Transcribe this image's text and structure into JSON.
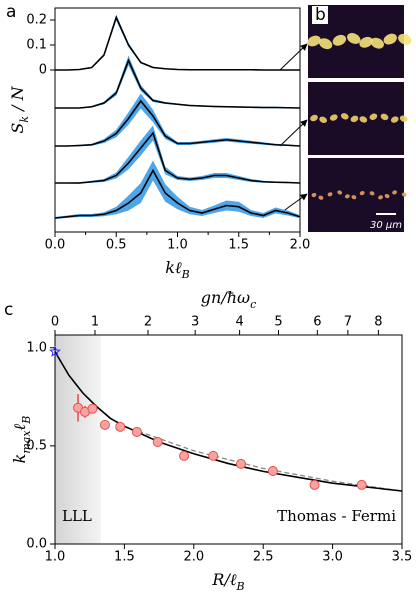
{
  "panel_labels": [
    "a",
    "b",
    "c"
  ],
  "image_panel": {
    "scale_bar": "30 μm"
  },
  "chart_data": [
    {
      "type": "line",
      "x": [
        0,
        0.1,
        0.2,
        0.3,
        0.4,
        0.5,
        0.6,
        0.7,
        0.8,
        0.9,
        1.0,
        1.1,
        1.2,
        1.3,
        1.4,
        1.5,
        1.6,
        1.7,
        1.8,
        1.9,
        2.0
      ],
      "xlim": [
        0,
        2
      ],
      "xticks": [
        {
          "value": 0,
          "label": "0.0"
        },
        0.5,
        {
          "value": 1,
          "label": "1.0"
        },
        1.5,
        {
          "value": 2,
          "label": "2.0"
        }
      ],
      "xminorticks": [
        0.25,
        0.75,
        1.25,
        1.75
      ],
      "ylim": [
        -0.648,
        0.248
      ],
      "yticks": [
        0,
        0.1,
        0.2
      ],
      "xlabel": [
        {
          "text": "kℓ"
        },
        {
          "text": "B",
          "sub": true
        }
      ],
      "ylabel": [
        {
          "text": "S"
        },
        {
          "text": "k",
          "sub": true
        },
        {
          "text": " / N"
        }
      ],
      "line_color": "#000000",
      "band_color": "#4da6ea",
      "series": [
        {
          "values": [
            0,
            0,
            0.002,
            0.01,
            0.06,
            0.21,
            0.1,
            0.03,
            0.01,
            0.005,
            0.002,
            0.001,
            0.001,
            0.001,
            0.001,
            0.001,
            0.001,
            0,
            0,
            0,
            0
          ],
          "errors": [
            0.002,
            0.002,
            0.002,
            0.003,
            0.006,
            0.012,
            0.008,
            0.004,
            0.003,
            0.002,
            0.002,
            0.002,
            0.002,
            0.002,
            0.002,
            0.002,
            0.002,
            0.002,
            0.002,
            0.002,
            0.002
          ]
        },
        {
          "values": [
            0,
            0,
            0,
            0.005,
            0.02,
            0.06,
            0.19,
            0.08,
            0.03,
            0.02,
            0.015,
            0.01,
            0.008,
            0.006,
            0.005,
            0.004,
            0.003,
            0.002,
            0.002,
            0.001,
            0
          ],
          "errors": [
            0.002,
            0.002,
            0.002,
            0.003,
            0.005,
            0.01,
            0.02,
            0.012,
            0.006,
            0.004,
            0.003,
            0.003,
            0.003,
            0.003,
            0.003,
            0.003,
            0.003,
            0.003,
            0.003,
            0.002,
            0.002
          ]
        },
        {
          "values": [
            0,
            0,
            0.002,
            0.005,
            0.02,
            0.05,
            0.11,
            0.18,
            0.12,
            0.04,
            0.01,
            0.01,
            0.015,
            0.02,
            0.025,
            0.02,
            0.015,
            0.01,
            0.005,
            0.003,
            0
          ],
          "errors": [
            0.002,
            0.002,
            0.003,
            0.004,
            0.008,
            0.015,
            0.025,
            0.03,
            0.025,
            0.012,
            0.006,
            0.006,
            0.006,
            0.007,
            0.007,
            0.007,
            0.006,
            0.005,
            0.004,
            0.003,
            0.002
          ]
        },
        {
          "values": [
            0,
            0,
            0,
            0.005,
            0.01,
            0.03,
            0.08,
            0.14,
            0.2,
            0.05,
            0.02,
            0.015,
            0.02,
            0.03,
            0.03,
            0.02,
            0.01,
            0.005,
            0.003,
            0.002,
            0
          ],
          "errors": [
            0.002,
            0.002,
            0.003,
            0.004,
            0.006,
            0.012,
            0.025,
            0.03,
            0.03,
            0.015,
            0.008,
            0.007,
            0.008,
            0.01,
            0.01,
            0.008,
            0.006,
            0.004,
            0.003,
            0.003,
            0.002
          ]
        },
        {
          "values": [
            0,
            0.005,
            0.01,
            0.01,
            0.015,
            0.03,
            0.06,
            0.1,
            0.19,
            0.1,
            0.06,
            0.03,
            0.02,
            0.035,
            0.05,
            0.045,
            0.02,
            0.01,
            0.03,
            0.02,
            0.005
          ],
          "errors": [
            0.004,
            0.005,
            0.006,
            0.006,
            0.008,
            0.015,
            0.03,
            0.04,
            0.04,
            0.035,
            0.025,
            0.015,
            0.012,
            0.015,
            0.02,
            0.02,
            0.012,
            0.01,
            0.012,
            0.01,
            0.006
          ]
        }
      ]
    },
    {
      "type": "scatter",
      "xlim": [
        1,
        3.5
      ],
      "xticks": [
        {
          "value": 1,
          "label": "1.0"
        },
        1.5,
        {
          "value": 2,
          "label": "2.0"
        },
        2.5,
        {
          "value": 3,
          "label": "3.0"
        },
        3.5
      ],
      "ylim": [
        0,
        1.065
      ],
      "yticks": [
        {
          "value": 0,
          "label": "0.0"
        },
        0.5,
        {
          "value": 1,
          "label": "1.0"
        }
      ],
      "x2ticks": [
        0,
        1,
        2,
        3,
        4,
        5,
        6,
        7,
        8
      ],
      "x2ticks_at": [
        1.0,
        1.288,
        1.67,
        2.01,
        2.33,
        2.61,
        2.89,
        3.11,
        3.33
      ],
      "xlabel": [
        {
          "text": "R/ℓ"
        },
        {
          "text": "B",
          "sub": true
        }
      ],
      "ylabel": [
        {
          "text": "k"
        },
        {
          "text": "max",
          "sub": true
        },
        {
          "text": "ℓ"
        },
        {
          "text": "B",
          "sub": true
        }
      ],
      "x2label": [
        {
          "text": "gn/ħω"
        },
        {
          "text": "c",
          "sub": true
        }
      ],
      "annotations": [
        "LLL",
        "Thomas - Fermi"
      ],
      "lll_region": [
        1.0,
        1.33
      ],
      "star": {
        "x": 1.0,
        "y": 0.98,
        "color": "#2b2bff"
      },
      "points": {
        "color": "#e8504f",
        "x": [
          1.166,
          1.216,
          1.27,
          1.36,
          1.47,
          1.59,
          1.74,
          1.93,
          2.14,
          2.34,
          2.57,
          2.87,
          3.21
        ],
        "values": [
          0.694,
          0.673,
          0.689,
          0.607,
          0.597,
          0.571,
          0.52,
          0.449,
          0.449,
          0.408,
          0.372,
          0.301,
          0.301
        ],
        "errors": [
          0.07,
          0.03,
          0.02,
          0.025,
          0.02,
          0.02,
          0.025,
          0.02,
          0.02,
          0.02,
          0.025,
          0.02,
          0.02
        ]
      },
      "theory": {
        "color": "#000000",
        "x": [
          1,
          1.1,
          1.2,
          1.3,
          1.4,
          1.5,
          1.75,
          2,
          2.25,
          2.5,
          2.75,
          3,
          3.25,
          3.5
        ],
        "values": [
          0.98,
          0.86,
          0.77,
          0.7,
          0.64,
          0.6,
          0.52,
          0.46,
          0.41,
          0.37,
          0.34,
          0.31,
          0.29,
          0.27
        ]
      },
      "dashed": {
        "color": "#888888",
        "x": [
          1.6,
          2,
          2.5,
          3,
          3.5
        ],
        "values": [
          0.575,
          0.475,
          0.385,
          0.32,
          0.27
        ]
      }
    }
  ]
}
